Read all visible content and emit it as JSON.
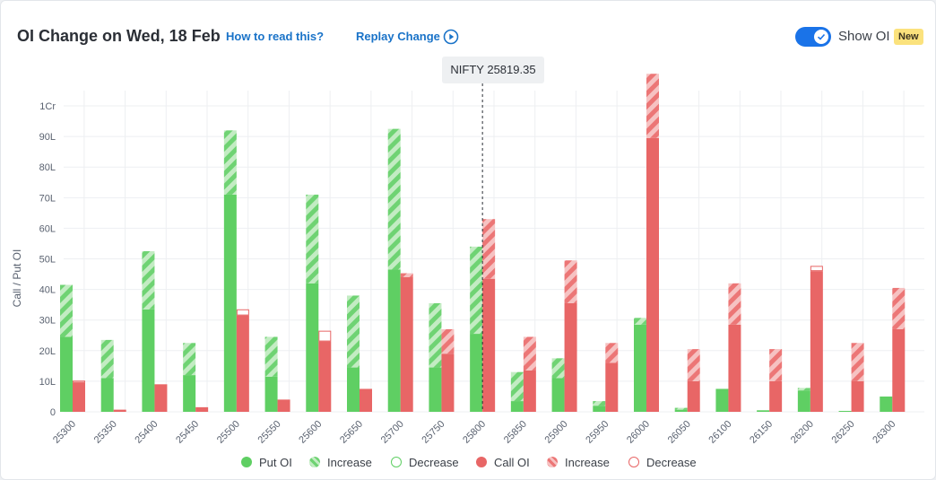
{
  "header": {
    "title": "OI Change on Wed, 18 Feb",
    "how_to_read": "How to read this?",
    "replay": "Replay Change",
    "show_oi": "Show OI",
    "badge": "New"
  },
  "tooltip": {
    "nifty": "NIFTY 25819.35"
  },
  "legend": {
    "put_oi": "Put OI",
    "put_increase": "Increase",
    "put_decrease": "Decrease",
    "call_oi": "Call OI",
    "call_increase": "Increase",
    "call_decrease": "Decrease"
  },
  "colors": {
    "put": "#5fcf63",
    "put_light": "#a5e2a5",
    "call": "#e86666",
    "call_light": "#f1a4a4",
    "grid": "#edeff2",
    "axis_text": "#5a6270"
  },
  "chart_data": {
    "type": "bar",
    "title": "OI Change on Wed, 18 Feb",
    "ylabel": "Call / Put OI",
    "y_unit": "lakh",
    "ylim": [
      0,
      105
    ],
    "yticks": [
      0,
      10,
      20,
      30,
      40,
      50,
      60,
      70,
      80,
      90,
      100
    ],
    "ytick_labels": [
      "0",
      "10L",
      "20L",
      "30L",
      "40L",
      "50L",
      "60L",
      "70L",
      "80L",
      "90L",
      "1Cr"
    ],
    "spot_label": "NIFTY 25819.35",
    "spot_value": 25819.35,
    "spot_category": "25800",
    "categories": [
      "25300",
      "25350",
      "25400",
      "25450",
      "25500",
      "25550",
      "25600",
      "25650",
      "25700",
      "25750",
      "25800",
      "25850",
      "25900",
      "25950",
      "26000",
      "26050",
      "26100",
      "26150",
      "26200",
      "26250",
      "26300"
    ],
    "series": [
      {
        "name": "Put OI",
        "role": "put_base",
        "values": [
          24.5,
          11,
          33.5,
          12,
          71,
          11.5,
          42,
          14.5,
          46.5,
          14.5,
          25.5,
          3.5,
          11,
          2,
          28.5,
          0.7,
          7.5,
          0.5,
          7,
          0.3,
          5
        ]
      },
      {
        "name": "Increase",
        "role": "put_increase",
        "values": [
          17,
          12.5,
          19,
          10.5,
          21,
          13,
          29,
          23.5,
          46,
          21,
          28.5,
          9.5,
          6.5,
          1.5,
          2.2,
          0.6,
          0,
          0,
          0.8,
          0,
          0
        ]
      },
      {
        "name": "Decrease",
        "role": "put_decrease",
        "values": [
          0,
          0,
          0,
          0,
          0,
          0,
          0,
          0,
          0,
          0,
          0,
          0,
          0,
          0,
          0,
          0,
          0,
          0,
          0,
          0,
          0
        ]
      },
      {
        "name": "Call OI",
        "role": "call_base",
        "values": [
          9.5,
          0.7,
          9,
          1.5,
          31.5,
          4,
          23,
          7.5,
          44,
          19,
          43.5,
          13.5,
          35.5,
          16,
          89.5,
          10,
          28.5,
          10,
          46,
          10,
          27
        ]
      },
      {
        "name": "Increase",
        "role": "call_increase",
        "values": [
          0,
          0,
          0,
          0,
          0,
          0,
          0,
          0,
          1.3,
          8,
          19.5,
          11,
          14,
          6.5,
          21,
          10.5,
          13.5,
          10.5,
          0,
          12.5,
          13.5
        ]
      },
      {
        "name": "Decrease",
        "role": "call_decrease",
        "values": [
          0.7,
          0,
          0,
          0,
          2,
          0,
          3.5,
          0,
          0,
          0,
          0,
          0,
          0,
          0,
          0,
          0,
          0,
          0,
          1.7,
          0,
          0
        ]
      }
    ]
  }
}
